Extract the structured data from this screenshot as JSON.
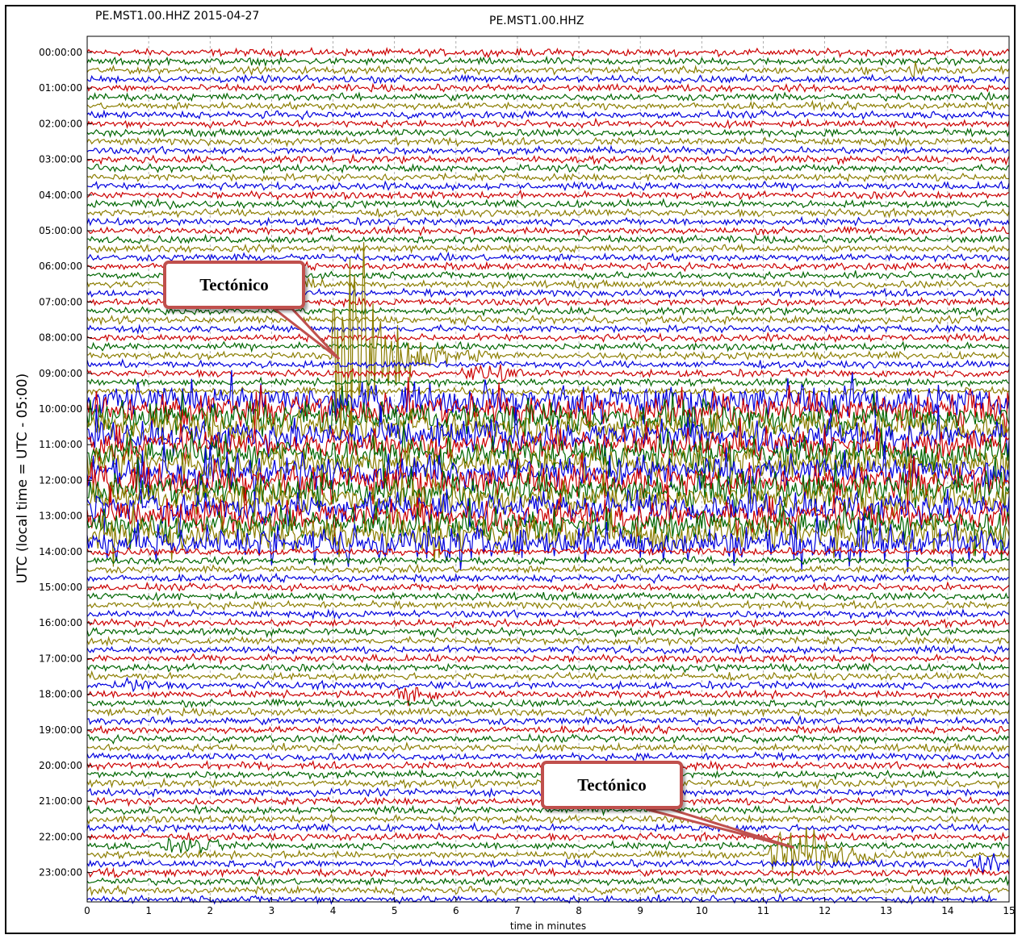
{
  "header": {
    "station_date": "PE.MST1.00.HHZ 2015-04-27",
    "plot_title": "PE.MST1.00.HHZ"
  },
  "annotations": [
    {
      "label": "Tectónico",
      "minute": 4.1,
      "hour": 8.6
    },
    {
      "label": "Tectónico",
      "minute": 11.5,
      "hour": 22.3
    }
  ],
  "chart_data": {
    "type": "line",
    "subtype": "helicorder",
    "title": "PE.MST1.00.HHZ",
    "xlabel": "time in minutes",
    "ylabel": "UTC (local time = UTC - 05:00)",
    "xlim": [
      0,
      15
    ],
    "ylim": [
      24,
      0
    ],
    "x_ticks": [
      0,
      1,
      2,
      3,
      4,
      5,
      6,
      7,
      8,
      9,
      10,
      11,
      12,
      13,
      14,
      15
    ],
    "y_ticks": [
      "00:00:00",
      "01:00:00",
      "02:00:00",
      "03:00:00",
      "04:00:00",
      "05:00:00",
      "06:00:00",
      "07:00:00",
      "08:00:00",
      "09:00:00",
      "10:00:00",
      "11:00:00",
      "12:00:00",
      "13:00:00",
      "14:00:00",
      "15:00:00",
      "16:00:00",
      "17:00:00",
      "18:00:00",
      "19:00:00",
      "20:00:00",
      "21:00:00",
      "22:00:00",
      "23:00:00"
    ],
    "lines_per_hour": 4,
    "line_minutes": 15,
    "trace_colors": [
      "#cc0000",
      "#006600",
      "#8b7d00",
      "#0000dd"
    ],
    "grid": "vertical dotted lines every minute",
    "noisy_hours": [
      9.75,
      13.75
    ],
    "events": [
      {
        "hour": 6.5,
        "minute_start": 3.0,
        "minute_end": 4.0,
        "amplitude": 0.45
      },
      {
        "hour": 8.5,
        "minute_start": 4.0,
        "minute_end": 7.6,
        "amplitude": 14.0,
        "peak_minute": 4.3
      },
      {
        "hour": 9.0,
        "minute_start": 6.0,
        "minute_end": 7.2,
        "amplitude": 0.6
      },
      {
        "hour": 4.25,
        "minute_start": 0.5,
        "minute_end": 1.8,
        "amplitude": 0.35
      },
      {
        "hour": 17.75,
        "minute_start": 0.4,
        "minute_end": 1.2,
        "amplitude": 0.55
      },
      {
        "hour": 18.0,
        "minute_start": 4.8,
        "minute_end": 5.8,
        "amplitude": 0.6
      },
      {
        "hour": 22.25,
        "minute_start": 1.1,
        "minute_end": 2.3,
        "amplitude": 0.55
      },
      {
        "hour": 22.5,
        "minute_start": 11.1,
        "minute_end": 13.0,
        "amplitude": 3.6,
        "peak_minute": 11.5
      },
      {
        "hour": 23.0,
        "minute_start": 0.0,
        "minute_end": 0.8,
        "amplitude": 0.45
      },
      {
        "hour": 22.75,
        "minute_start": 14.3,
        "minute_end": 15.0,
        "amplitude": 0.6
      },
      {
        "hour": 0.5,
        "minute_start": 13.3,
        "minute_end": 13.6,
        "amplitude": 0.9
      }
    ]
  }
}
